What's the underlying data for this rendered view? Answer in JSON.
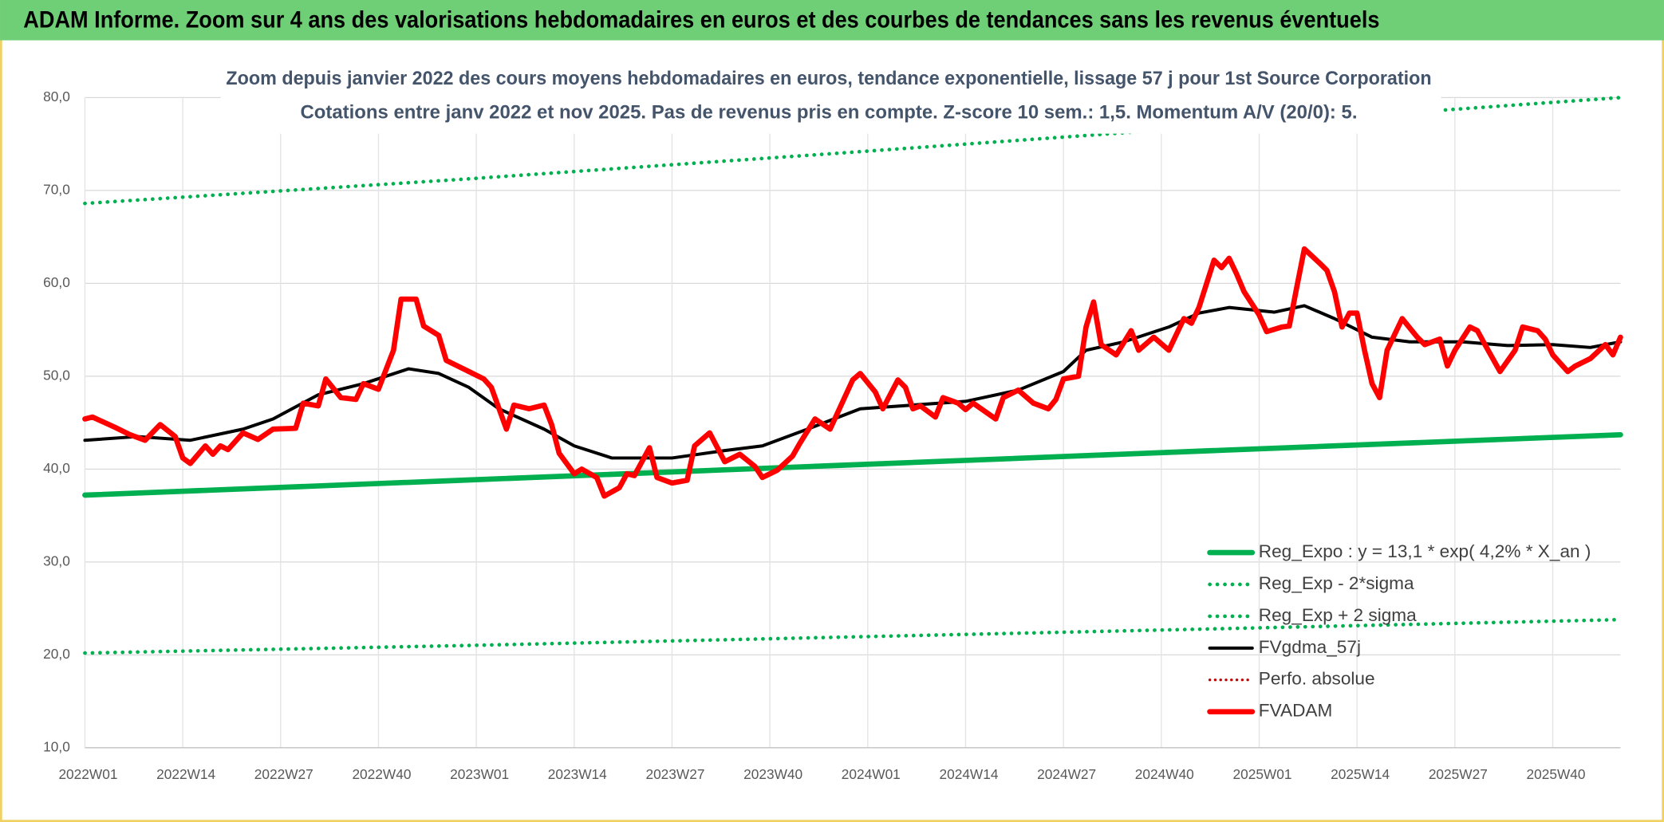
{
  "chart_data": {
    "type": "line",
    "title": "ADAM Informe. Zoom sur 4 ans des valorisations hebdomadaires en euros et des courbes de tendances sans les revenus éventuels",
    "subtitle": [
      "Zoom depuis janvier 2022 des cours moyens hebdomadaires en euros, tendance exponentielle, lissage 57 j pour 1st Source Corporation",
      "Cotations entre janv 2022 et nov 2025. Pas de revenus pris en compte. Z-score 10 sem.: 1,5. Momentum A/V (20/0): 5."
    ],
    "xlim": [
      0,
      204
    ],
    "xticks": [
      {
        "value": 0,
        "label": "2022W01"
      },
      {
        "value": 13,
        "label": "2022W14"
      },
      {
        "value": 26,
        "label": "2022W27"
      },
      {
        "value": 39,
        "label": "2022W40"
      },
      {
        "value": 52,
        "label": "2023W01"
      },
      {
        "value": 65,
        "label": "2023W14"
      },
      {
        "value": 78,
        "label": "2023W27"
      },
      {
        "value": 91,
        "label": "2023W40"
      },
      {
        "value": 104,
        "label": "2024W01"
      },
      {
        "value": 117,
        "label": "2024W14"
      },
      {
        "value": 130,
        "label": "2024W27"
      },
      {
        "value": 143,
        "label": "2024W40"
      },
      {
        "value": 156,
        "label": "2025W01"
      },
      {
        "value": 169,
        "label": "2025W14"
      },
      {
        "value": 182,
        "label": "2025W27"
      },
      {
        "value": 195,
        "label": "2025W40"
      }
    ],
    "ylim": [
      10,
      80
    ],
    "yticks": [
      {
        "value": 10,
        "label": "10,0"
      },
      {
        "value": 20,
        "label": "20,0"
      },
      {
        "value": 30,
        "label": "30,0"
      },
      {
        "value": 40,
        "label": "40,0"
      },
      {
        "value": 50,
        "label": "50,0"
      },
      {
        "value": 60,
        "label": "60,0"
      },
      {
        "value": 70,
        "label": "70,0"
      },
      {
        "value": 80,
        "label": "80,0"
      }
    ],
    "grid": true,
    "legend": "bottom-right",
    "series": [
      {
        "name": "Reg_Expo : y = 13,1 * exp( 4,2% *  X_an )",
        "color": "#00b050",
        "style": "solid",
        "linewidth": 5,
        "x": [
          0,
          50,
          100,
          150,
          204
        ],
        "values": [
          37.2,
          38.8,
          40.4,
          42.0,
          43.7
        ]
      },
      {
        "name": "Reg_Exp - 2*sigma",
        "color": "#00b050",
        "style": "dotted",
        "linewidth": 3.5,
        "x": [
          0,
          50,
          100,
          150,
          204
        ],
        "values": [
          20.2,
          21.0,
          21.9,
          22.8,
          23.8
        ]
      },
      {
        "name": "Reg_Exp + 2 sigma",
        "color": "#00b050",
        "style": "dotted",
        "linewidth": 3.5,
        "x": [
          0,
          50,
          100,
          150,
          204
        ],
        "values": [
          68.6,
          71.2,
          74.0,
          76.9,
          80.0
        ]
      },
      {
        "name": "FVgdma_57j",
        "color": "#000000",
        "style": "solid",
        "linewidth": 3,
        "x": [
          0,
          7,
          14,
          21,
          25,
          31,
          37,
          43,
          47,
          51,
          55,
          61,
          65,
          70,
          78,
          85,
          90,
          96,
          103,
          110,
          117,
          124,
          130,
          133,
          138,
          144,
          148,
          152,
          158,
          162,
          166,
          171,
          176,
          183,
          189,
          195,
          200,
          204
        ],
        "values": [
          43.1,
          43.5,
          43.1,
          44.3,
          45.4,
          48.0,
          49.2,
          50.8,
          50.3,
          48.8,
          46.5,
          44.3,
          42.5,
          41.2,
          41.2,
          42.0,
          42.5,
          44.3,
          46.5,
          46.9,
          47.3,
          48.5,
          50.5,
          52.8,
          53.7,
          55.3,
          56.8,
          57.4,
          56.9,
          57.6,
          56.2,
          54.2,
          53.7,
          53.7,
          53.3,
          53.4,
          53.1,
          53.7
        ]
      },
      {
        "name": "Perfo. absolue",
        "color": "#c00000",
        "style": "dotted",
        "linewidth": 2.5,
        "x": [],
        "values": []
      },
      {
        "name": "FVADAM",
        "color": "#ff0000",
        "style": "solid",
        "linewidth": 5,
        "x": [
          0,
          1,
          4,
          6,
          8,
          10,
          12,
          13,
          14,
          16,
          17,
          18,
          19,
          21,
          23,
          25,
          28,
          29,
          31,
          32,
          34,
          36,
          37,
          39,
          41,
          42,
          44,
          45,
          47,
          48,
          49,
          51,
          53,
          54,
          56,
          57,
          59,
          61,
          62,
          63,
          65,
          66,
          68,
          69,
          71,
          72,
          73,
          75,
          76,
          78,
          80,
          81,
          83,
          85,
          87,
          89,
          90,
          92,
          94,
          95,
          97,
          99,
          102,
          103,
          105,
          106,
          108,
          109,
          110,
          111,
          113,
          114,
          116,
          117,
          118,
          121,
          122,
          124,
          126,
          128,
          129,
          130,
          132,
          133,
          134,
          135,
          137,
          139,
          140,
          142,
          144,
          146,
          147,
          148,
          150,
          151,
          152,
          153,
          154,
          156,
          157,
          159,
          160,
          161,
          162,
          164,
          165,
          166,
          167,
          168,
          169,
          170,
          171,
          172,
          173,
          175,
          177,
          178,
          180,
          181,
          182,
          184,
          185,
          186,
          188,
          190,
          191,
          193,
          194,
          195,
          197,
          198,
          200,
          202,
          203,
          204
        ],
        "values": [
          45.4,
          45.6,
          44.5,
          43.7,
          43.1,
          44.8,
          43.5,
          41.2,
          40.6,
          42.5,
          41.6,
          42.5,
          42.1,
          43.9,
          43.2,
          44.3,
          44.4,
          47.1,
          46.8,
          49.7,
          47.7,
          47.5,
          49.2,
          48.6,
          52.8,
          58.3,
          58.3,
          55.4,
          54.4,
          51.7,
          51.3,
          50.5,
          49.7,
          48.8,
          44.3,
          46.9,
          46.5,
          46.9,
          44.8,
          41.7,
          39.5,
          40.0,
          39.1,
          37.1,
          38.0,
          39.5,
          39.3,
          42.3,
          39.1,
          38.5,
          38.8,
          42.5,
          43.9,
          40.8,
          41.6,
          40.3,
          39.1,
          39.9,
          41.4,
          42.8,
          45.4,
          44.3,
          49.6,
          50.3,
          48.3,
          46.5,
          49.6,
          48.8,
          46.5,
          46.8,
          45.6,
          47.7,
          47.1,
          46.4,
          47.1,
          45.4,
          47.7,
          48.5,
          47.1,
          46.5,
          47.5,
          49.7,
          50.0,
          55.3,
          58.0,
          53.4,
          52.3,
          54.9,
          52.8,
          54.2,
          52.8,
          56.2,
          55.7,
          57.4,
          62.5,
          61.7,
          62.7,
          61.0,
          59.1,
          56.6,
          54.8,
          55.3,
          55.4,
          59.6,
          63.7,
          62.2,
          61.4,
          59.1,
          55.3,
          56.8,
          56.8,
          52.8,
          49.2,
          47.7,
          52.8,
          56.2,
          54.2,
          53.4,
          54.0,
          51.1,
          52.8,
          55.3,
          54.9,
          53.4,
          50.5,
          52.8,
          55.3,
          54.9,
          54.0,
          52.3,
          50.5,
          51.1,
          51.9,
          53.4,
          52.3,
          54.2
        ]
      }
    ]
  }
}
